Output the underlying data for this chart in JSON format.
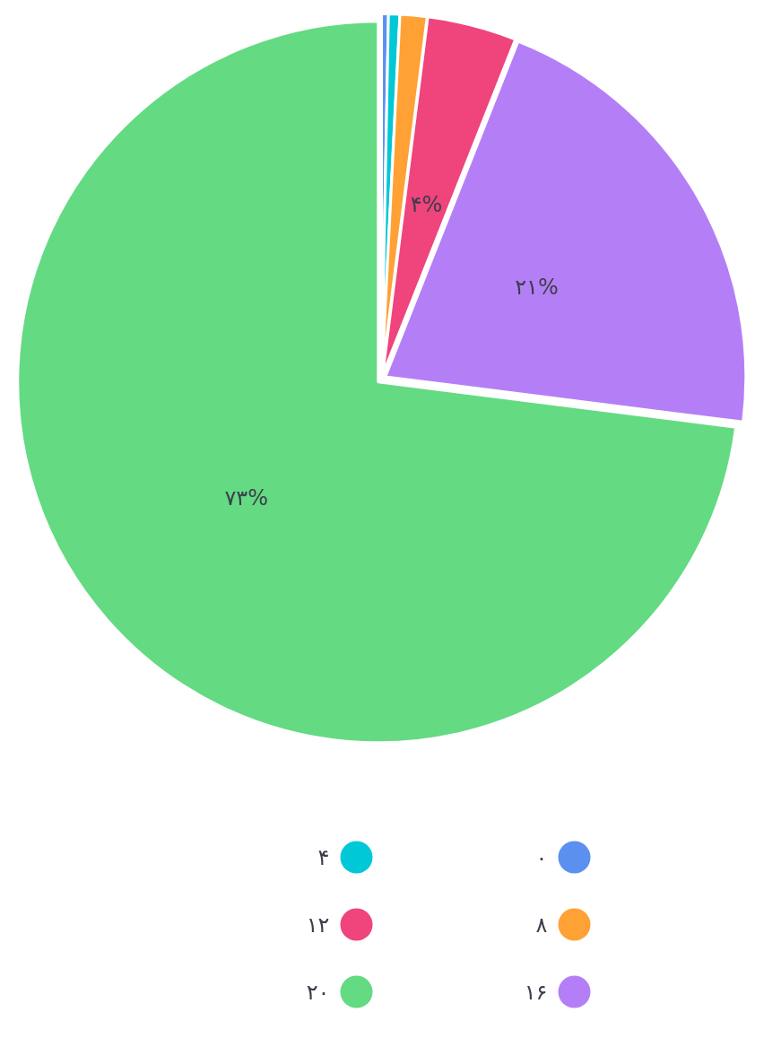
{
  "chart_data": {
    "type": "pie",
    "categories": [
      "۰",
      "۴",
      "۸",
      "۱۲",
      "۱۶",
      "۲۰"
    ],
    "values": [
      0.3,
      0.5,
      1.2,
      4,
      21,
      73
    ],
    "colors": [
      "#5b8ff0",
      "#00c8d6",
      "#ffa134",
      "#ef447c",
      "#b47ff6",
      "#64da83"
    ],
    "value_labels": [
      null,
      null,
      null,
      "۴%",
      "۲۱%",
      "۷۳%"
    ],
    "legend": "bottom"
  }
}
